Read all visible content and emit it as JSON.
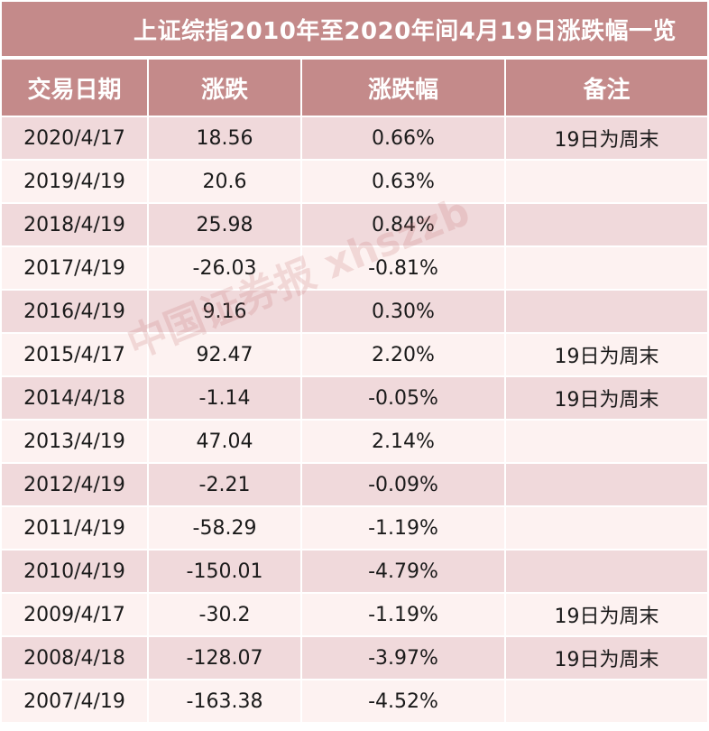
{
  "title": "上证综指2010年至2020年间4月19日涨跌幅一览",
  "headers": [
    "交易日期",
    "涨跌",
    "涨跌幅",
    "备注"
  ],
  "rows": [
    {
      "date": "2020/4/17",
      "change": "18.56",
      "pct": "0.66%",
      "note": "19日为周末"
    },
    {
      "date": "2019/4/19",
      "change": "20.6",
      "pct": "0.63%",
      "note": ""
    },
    {
      "date": "2018/4/19",
      "change": "25.98",
      "pct": "0.84%",
      "note": ""
    },
    {
      "date": "2017/4/19",
      "change": "-26.03",
      "pct": "-0.81%",
      "note": ""
    },
    {
      "date": "2016/4/19",
      "change": "9.16",
      "pct": "0.30%",
      "note": ""
    },
    {
      "date": "2015/4/17",
      "change": "92.47",
      "pct": "2.20%",
      "note": "19日为周末"
    },
    {
      "date": "2014/4/18",
      "change": "-1.14",
      "pct": "-0.05%",
      "note": "19日为周末"
    },
    {
      "date": "2013/4/19",
      "change": "47.04",
      "pct": "2.14%",
      "note": ""
    },
    {
      "date": "2012/4/19",
      "change": "-2.21",
      "pct": "-0.09%",
      "note": ""
    },
    {
      "date": "2011/4/19",
      "change": "-58.29",
      "pct": "-1.19%",
      "note": ""
    },
    {
      "date": "2010/4/19",
      "change": "-150.01",
      "pct": "-4.79%",
      "note": ""
    },
    {
      "date": "2009/4/17",
      "change": "-30.2",
      "pct": "-1.19%",
      "note": "19日为周末"
    },
    {
      "date": "2008/4/18",
      "change": "-128.07",
      "pct": "-3.97%",
      "note": "19日为周末"
    },
    {
      "date": "2007/4/19",
      "change": "-163.38",
      "pct": "-4.52%",
      "note": ""
    }
  ],
  "watermark": "中国证券报 xhszzb",
  "colors": {
    "header_bg": "#c48a8a",
    "row_odd_bg": "#f0d9db",
    "row_even_bg": "#fdf2f1"
  }
}
